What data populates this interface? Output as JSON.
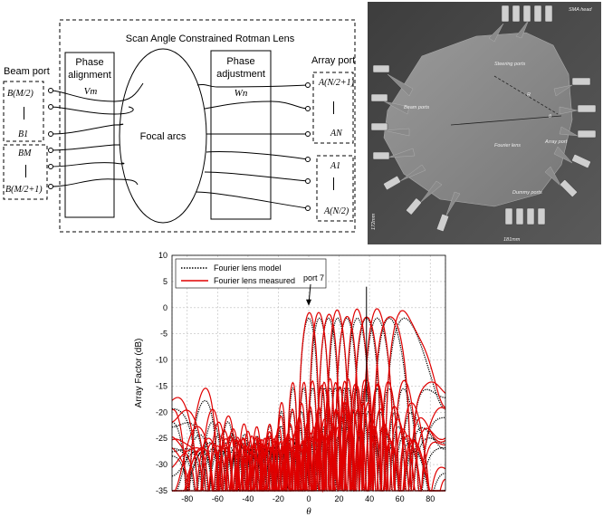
{
  "diagram": {
    "title": "Scan Angle Constrained Rotman Lens",
    "beam_port_label": "Beam port",
    "array_port_label": "Array port",
    "phase_alignment_label": [
      "Phase",
      "alignment"
    ],
    "phase_adjustment_label": [
      "Phase",
      "adjustment"
    ],
    "focal_arcs_label": "Focal arcs",
    "vm_label": "Vm",
    "wn_label": "Wn",
    "beam_ports": [
      "B(M/2)",
      "B1",
      "BM",
      "B(M/2+1)"
    ],
    "array_ports": [
      "A(N/2+1)",
      "AN",
      "A1",
      "A(N/2)"
    ]
  },
  "photo": {
    "annotations": [
      "Beam ports",
      "Fourier lens",
      "Array port",
      "Dummy ports",
      "Steering ports",
      "SMA head",
      "172mm",
      "181mm",
      "R",
      "θ"
    ]
  },
  "chart_data": {
    "type": "line",
    "xlabel": "θ",
    "ylabel": "Array Factor (dB)",
    "xlim": [
      -90,
      90
    ],
    "ylim": [
      -35,
      10
    ],
    "xticks": [
      -80,
      -60,
      -40,
      -20,
      0,
      20,
      40,
      60,
      80
    ],
    "yticks": [
      10,
      5,
      0,
      -5,
      -10,
      -15,
      -20,
      -25,
      -30,
      -35
    ],
    "grid": true,
    "legend_position": "top-left",
    "annotation": "port 7",
    "annotation_target": {
      "x": 0,
      "y": 0
    },
    "peaks": [
      0,
      7,
      13,
      19,
      25,
      32,
      38,
      45,
      53,
      63
    ],
    "series": [
      {
        "name": "Fourier lens model",
        "color": "#000000",
        "style": "dotted"
      },
      {
        "name": "Fourier lens measured",
        "color": "#e00000",
        "style": "solid"
      }
    ]
  }
}
